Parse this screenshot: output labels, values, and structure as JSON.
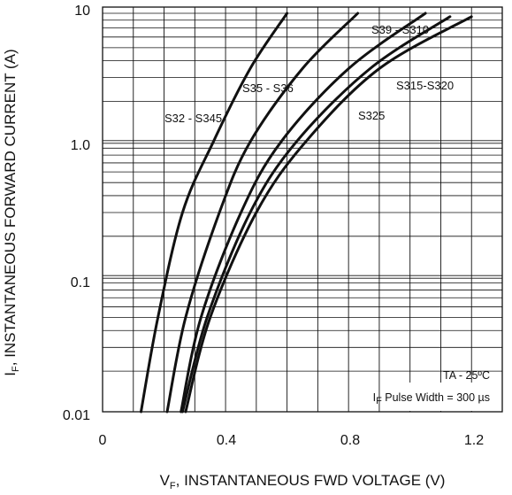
{
  "chart_data": {
    "type": "line",
    "x_scale": "linear",
    "y_scale": "log",
    "xlim": [
      0,
      1.3
    ],
    "ylim": [
      0.01,
      10
    ],
    "x_ticks": [
      "0",
      "0.4",
      "0.8",
      "1.2"
    ],
    "y_ticks": [
      "0.01",
      "0.1",
      "1.0",
      "10"
    ],
    "xlabel": {
      "prefix": "V",
      "sub": "F",
      "suffix": ", INSTANTANEOUS FWD VOLTAGE (V)"
    },
    "ylabel": {
      "prefix": "I",
      "sub": "F",
      "suffix": ", INSTANTANEOUS FORWARD CURRENT (A)"
    },
    "grid": true,
    "annotations": {
      "temp": "TA - 25ºC",
      "pulse_prefix": "I",
      "pulse_sub": "F",
      "pulse_suffix": " Pulse Width = 300 µs"
    },
    "series": [
      {
        "name": "S32 - S345",
        "points": [
          [
            0.125,
            0.01
          ],
          [
            0.18,
            0.05
          ],
          [
            0.26,
            0.3
          ],
          [
            0.36,
            1.0
          ],
          [
            0.48,
            3.5
          ],
          [
            0.6,
            9.0
          ]
        ]
      },
      {
        "name": "S35 - S36",
        "points": [
          [
            0.21,
            0.01
          ],
          [
            0.27,
            0.05
          ],
          [
            0.38,
            0.3
          ],
          [
            0.48,
            1.0
          ],
          [
            0.65,
            3.5
          ],
          [
            0.83,
            9.0
          ]
        ]
      },
      {
        "name": "S39 - S310",
        "points": [
          [
            0.255,
            0.01
          ],
          [
            0.32,
            0.05
          ],
          [
            0.45,
            0.3
          ],
          [
            0.58,
            1.0
          ],
          [
            0.8,
            3.5
          ],
          [
            1.05,
            9.0
          ]
        ]
      },
      {
        "name": "S325",
        "points": [
          [
            0.26,
            0.01
          ],
          [
            0.34,
            0.05
          ],
          [
            0.48,
            0.3
          ],
          [
            0.63,
            1.0
          ],
          [
            0.87,
            3.5
          ],
          [
            1.13,
            8.5
          ]
        ]
      },
      {
        "name": "S315-S320",
        "points": [
          [
            0.27,
            0.01
          ],
          [
            0.35,
            0.05
          ],
          [
            0.5,
            0.3
          ],
          [
            0.66,
            1.0
          ],
          [
            0.9,
            3.5
          ],
          [
            1.2,
            8.5
          ]
        ]
      }
    ]
  }
}
